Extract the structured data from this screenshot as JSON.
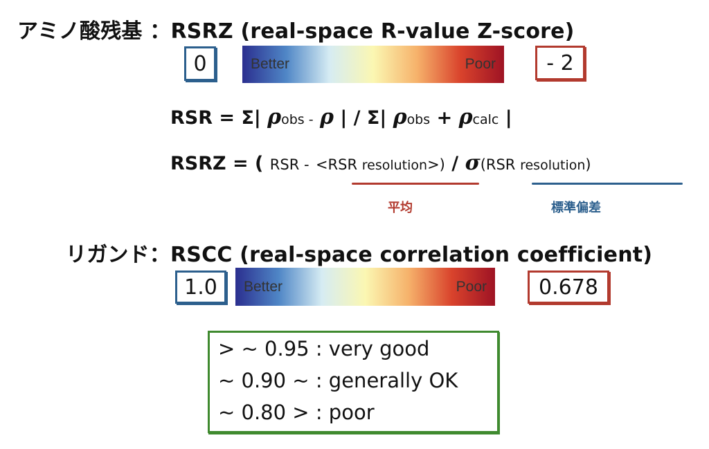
{
  "rsrz": {
    "heading": "アミノ酸残基 ：RSRZ (real-space R-value Z-score)",
    "left_value": "0",
    "right_value": "- 2",
    "better_label": "Better",
    "poor_label": "Poor"
  },
  "formulas": {
    "rsr_lhs": "RSR = Σ|",
    "rsr_sub_obs1": "obs -",
    "rsr_mid": "| / Σ|",
    "rsr_sub_obs2": "obs",
    "rsr_plus": "+",
    "rsr_sub_calc": "calc",
    "rsr_end": "|",
    "rsrz_lhs": "RSRZ = (",
    "rsrz_rsr": "RSR -",
    "rsrz_mean_open": "<RSR",
    "rsrz_mean_sub": "resolution",
    "rsrz_mean_close": ">)",
    "rsrz_slash": "/",
    "rsrz_sigma": "σ",
    "rsrz_sd_open": "(RSR",
    "rsrz_sd_sub": "resolution",
    "rsrz_sd_close": ")",
    "mean_note": "平均",
    "sd_note": "標準偏差",
    "rho": "ρ"
  },
  "rscc": {
    "heading": "リガンド：RSCC (real-space correlation coefficient)",
    "left_value": "1.0",
    "right_value": "0.678",
    "better_label": "Better",
    "poor_label": "Poor"
  },
  "thresholds": [
    "> ~ 0.95 : very good",
    "~ 0.90 ~ : generally OK",
    "~ 0.80 > : poor"
  ],
  "colors": {
    "blue": "#2c5f8d",
    "red": "#b23a2e",
    "green": "#3f8a2f",
    "gradient": [
      "#2b2f8f",
      "#4f86c6",
      "#d6ecf3",
      "#fbf7b2",
      "#f6b26b",
      "#d9432c",
      "#9e1324"
    ]
  }
}
